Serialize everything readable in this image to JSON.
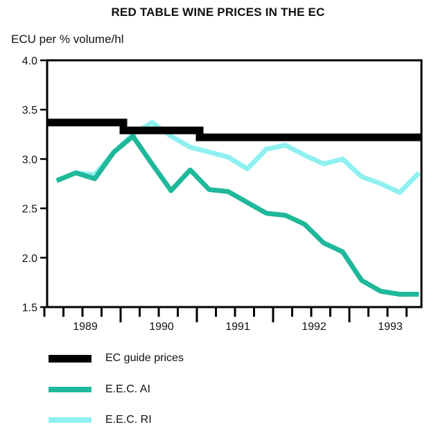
{
  "chart_data": {
    "type": "line",
    "title": "RED TABLE WINE PRICES IN THE EC",
    "ylabel": "ECU per % volume/hl",
    "xlabel": "",
    "ylim": [
      1.5,
      4.0
    ],
    "xlim": [
      1989.0,
      1993.9
    ],
    "yticks": [
      "1.5",
      "2.0",
      "2.5",
      "3.0",
      "3.5",
      "4.0"
    ],
    "xtick_labels": [
      "1989",
      "1990",
      "1991",
      "1992",
      "1993"
    ],
    "grid": false,
    "legend_placement": "bottom",
    "series": [
      {
        "name": "EC guide prices",
        "color": "#000000",
        "style": "step",
        "x": [
          1989.0,
          1990.0,
          1990.0,
          1991.0,
          1991.0,
          1993.9
        ],
        "values": [
          3.37,
          3.37,
          3.29,
          3.29,
          3.22,
          3.22
        ]
      },
      {
        "name": "E.E.C. AI",
        "color": "#1fb89a",
        "x": [
          1989.125,
          1989.375,
          1989.625,
          1989.875,
          1990.125,
          1990.375,
          1990.625,
          1990.875,
          1991.125,
          1991.375,
          1991.625,
          1991.875,
          1992.125,
          1992.375,
          1992.625,
          1992.875,
          1993.125,
          1993.375,
          1993.625,
          1993.875
        ],
        "values": [
          2.78,
          2.86,
          2.8,
          3.07,
          3.23,
          2.95,
          2.68,
          2.89,
          2.69,
          2.67,
          2.56,
          2.45,
          2.43,
          2.34,
          2.15,
          2.06,
          1.77,
          1.66,
          1.63,
          1.63
        ]
      },
      {
        "name": "E.E.C. RI",
        "color": "#8ff0f0",
        "x": [
          1989.125,
          1989.375,
          1989.625,
          1989.875,
          1990.125,
          1990.375,
          1990.625,
          1990.875,
          1991.125,
          1991.375,
          1991.625,
          1991.875,
          1992.125,
          1992.375,
          1992.625,
          1992.875,
          1993.125,
          1993.375,
          1993.625,
          1993.875
        ],
        "values": [
          2.78,
          2.86,
          2.84,
          3.07,
          3.25,
          3.37,
          3.23,
          3.12,
          3.07,
          3.02,
          2.9,
          3.1,
          3.14,
          3.04,
          2.95,
          3.0,
          2.82,
          2.75,
          2.66,
          2.86
        ]
      }
    ]
  }
}
